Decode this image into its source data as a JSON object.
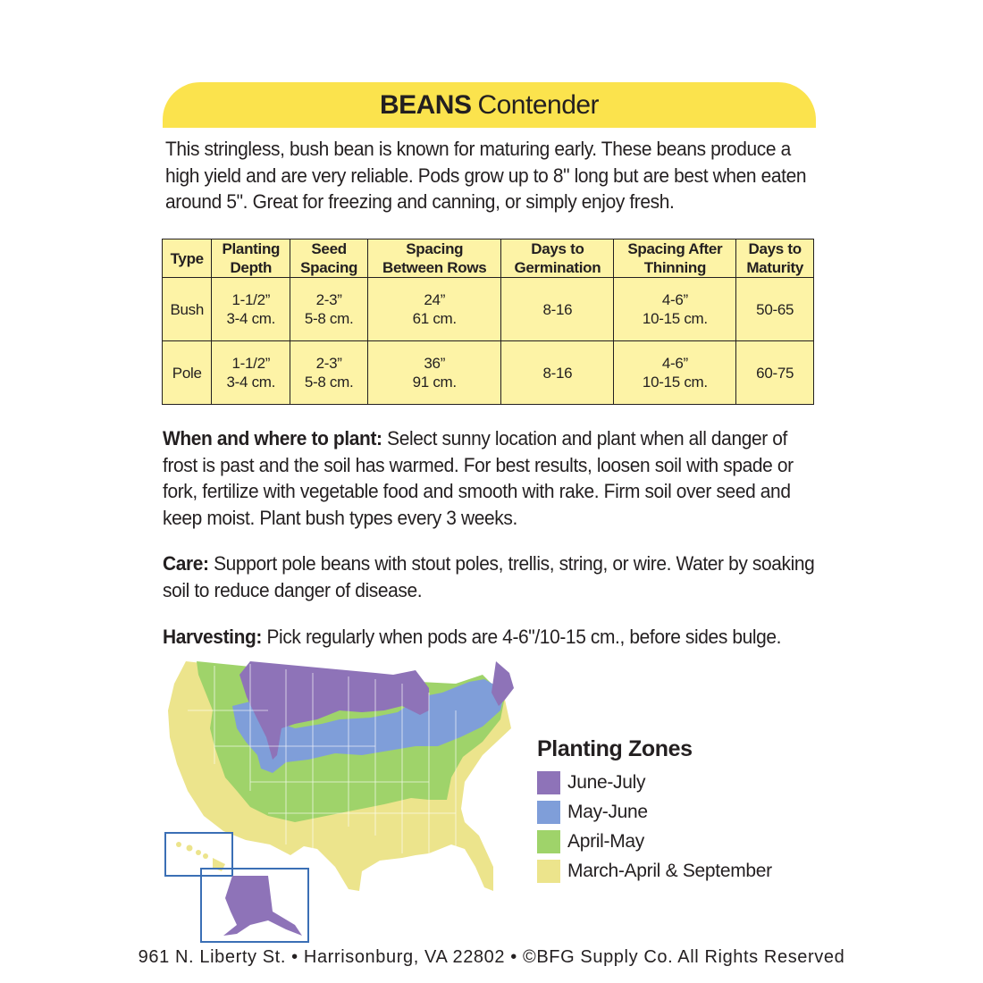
{
  "header": {
    "name": "BEANS",
    "variety": "Contender"
  },
  "intro": "This stringless, bush bean is known for maturing early.  These beans produce a high yield and are very reliable.  Pods grow up to 8\" long but are best when eaten around 5\".  Great for freezing and canning, or simply enjoy fresh.",
  "table": {
    "headers": [
      [
        "Type"
      ],
      [
        "Planting",
        "Depth"
      ],
      [
        "Seed",
        "Spacing"
      ],
      [
        "Spacing",
        "Between Rows"
      ],
      [
        "Days to",
        "Germination"
      ],
      [
        "Spacing After",
        "Thinning"
      ],
      [
        "Days to",
        "Maturity"
      ]
    ],
    "rows": [
      [
        [
          "Bush"
        ],
        [
          "1-1/2”",
          "3-4 cm."
        ],
        [
          "2-3”",
          "5-8 cm."
        ],
        [
          "24”",
          "61 cm."
        ],
        [
          "8-16"
        ],
        [
          "4-6”",
          "10-15 cm."
        ],
        [
          "50-65"
        ]
      ],
      [
        [
          "Pole"
        ],
        [
          "1-1/2”",
          "3-4 cm."
        ],
        [
          "2-3”",
          "5-8 cm."
        ],
        [
          "36”",
          "91 cm."
        ],
        [
          "8-16"
        ],
        [
          "4-6”",
          "10-15 cm."
        ],
        [
          "60-75"
        ]
      ]
    ]
  },
  "sections": {
    "when": {
      "label": "When and where to plant:",
      "text": " Select sunny location and plant when all danger of frost is past and the soil has warmed. For best results, loosen soil with spade or fork, fertilize with vegetable food and smooth with rake. Firm soil over seed and keep moist. Plant bush types every 3 weeks."
    },
    "care": {
      "label": "Care:",
      "text": " Support pole beans with stout poles, trellis, string, or wire. Water by soaking soil to reduce danger of disease."
    },
    "harvest": {
      "label": "Harvesting:",
      "text": " Pick regularly when pods are 4-6\"/10-15 cm., before sides bulge."
    }
  },
  "legend": {
    "title": "Planting Zones",
    "items": [
      {
        "label": "June-July",
        "color": "#8e73b8"
      },
      {
        "label": "May-June",
        "color": "#7f9ed9"
      },
      {
        "label": "April-May",
        "color": "#9fd36a"
      },
      {
        "label": "March-April & September",
        "color": "#ece48c"
      }
    ]
  },
  "footer": "961 N. Liberty St. • Harrisonburg, VA 22802 • ©BFG Supply Co. All Rights Reserved"
}
